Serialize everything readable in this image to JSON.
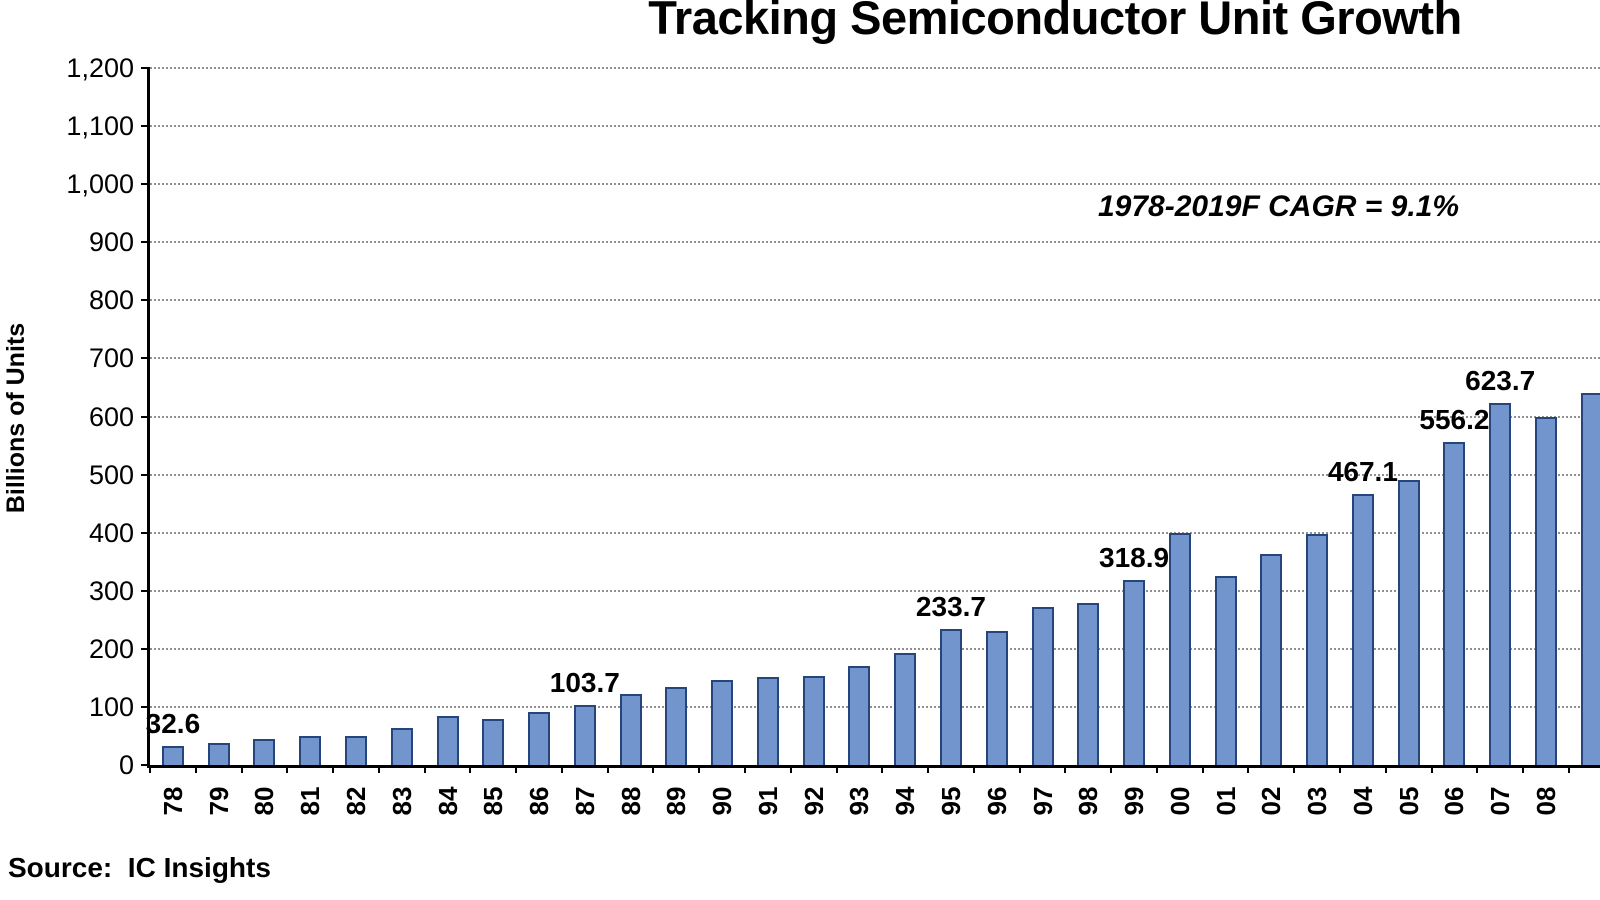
{
  "title": "Tracking Semiconductor Unit Growth",
  "annotation": "1978-2019F CAGR = 9.1%",
  "source": "Source:  IC Insights",
  "chart_data": {
    "type": "bar",
    "title": "Tracking Semiconductor Unit Growth",
    "xlabel": "",
    "ylabel": "Billions of Units",
    "ylim": [
      0,
      1200
    ],
    "ytick_step": 100,
    "grid": "horizontal dotted gridlines",
    "legend_position": "none",
    "bar_fill": "#7295cd",
    "bar_border": "#26457a",
    "categories": [
      "78",
      "79",
      "80",
      "81",
      "82",
      "83",
      "84",
      "85",
      "86",
      "87",
      "88",
      "89",
      "90",
      "91",
      "92",
      "93",
      "94",
      "95",
      "96",
      "97",
      "98",
      "99",
      "00",
      "01",
      "02",
      "03",
      "04",
      "05",
      "06",
      "07",
      "08"
    ],
    "values": [
      32.6,
      38,
      45,
      50,
      50,
      63,
      85,
      80,
      92,
      103.7,
      122,
      135,
      146,
      152,
      153,
      170,
      192,
      233.7,
      230,
      272,
      279,
      318.9,
      400,
      325,
      363,
      398,
      467.1,
      490,
      556.2,
      623.7,
      600
    ],
    "bar_labels": [
      "32.6",
      "",
      "",
      "",
      "",
      "",
      "",
      "",
      "",
      "103.7",
      "",
      "",
      "",
      "",
      "",
      "",
      "",
      "233.7",
      "",
      "",
      "",
      "318.9",
      "",
      "",
      "",
      "",
      "467.1",
      "",
      "556.2",
      "623.7",
      ""
    ],
    "annotation": "1978-2019F CAGR = 9.1%",
    "source": "Source:  IC Insights",
    "partial_next_bar_value": 640
  }
}
